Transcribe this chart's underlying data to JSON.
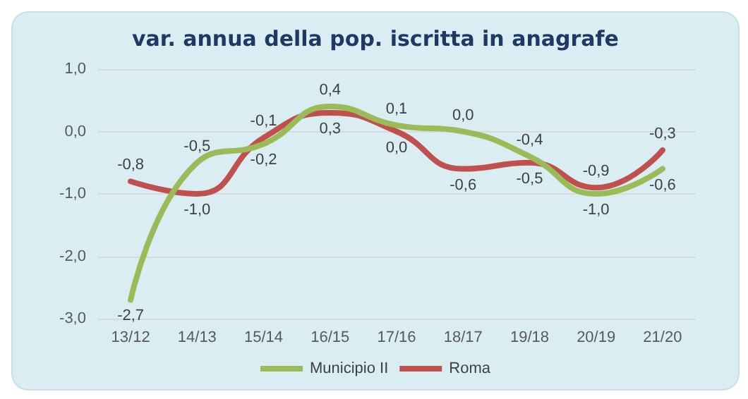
{
  "chart_data": {
    "type": "line",
    "title": "var. annua della pop. iscritta in anagrafe",
    "categories": [
      "13/12",
      "14/13",
      "15/14",
      "16/15",
      "17/16",
      "18/17",
      "19/18",
      "20/19",
      "21/20"
    ],
    "series": [
      {
        "name": "Municipio II",
        "color": "#9bbb59",
        "values": [
          -2.7,
          -0.5,
          -0.2,
          0.4,
          0.1,
          0.0,
          -0.4,
          -1.0,
          -0.6
        ],
        "value_labels": [
          "-2,7",
          "-0,5",
          "-0,2",
          "0,4",
          "0,1",
          "0,0",
          "-0,4",
          "-1,0",
          "-0,6"
        ]
      },
      {
        "name": "Roma",
        "color": "#c0504d",
        "values": [
          -0.8,
          -1.0,
          -0.1,
          0.3,
          0.0,
          -0.6,
          -0.5,
          -0.9,
          -0.3
        ],
        "value_labels": [
          "-0,8",
          "-1,0",
          "-0,1",
          "0,3",
          "0,0",
          "-0,6",
          "-0,5",
          "-0,9",
          "-0,3"
        ]
      }
    ],
    "ylim": [
      -3,
      1
    ],
    "yticks": [
      {
        "value": -3,
        "label": "-3,0"
      },
      {
        "value": -2,
        "label": "-2,0"
      },
      {
        "value": -1,
        "label": "-1,0"
      },
      {
        "value": 0,
        "label": "0,0"
      },
      {
        "value": 1,
        "label": "1,0"
      }
    ],
    "grid": "y",
    "legend": "bottom",
    "marker": "none",
    "line_style": "solid"
  }
}
